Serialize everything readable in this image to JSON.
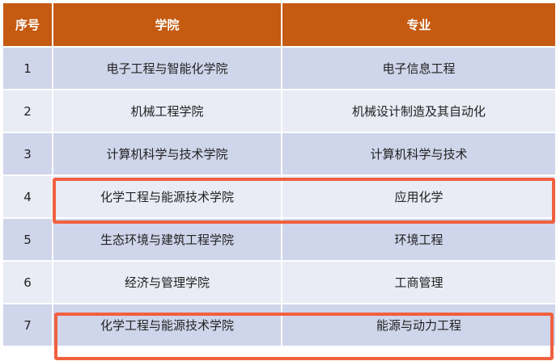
{
  "headers": {
    "index": "序号",
    "college": "学院",
    "major": "专业"
  },
  "rows": [
    {
      "index": "1",
      "college": "电子工程与智能化学院",
      "major": "电子信息工程",
      "highlighted": false
    },
    {
      "index": "2",
      "college": "机械工程学院",
      "major": "机械设计制造及其自动化",
      "highlighted": false
    },
    {
      "index": "3",
      "college": "计算机科学与技术学院",
      "major": "计算机科学与技术",
      "highlighted": false
    },
    {
      "index": "4",
      "college": "化学工程与能源技术学院",
      "major": "应用化学",
      "highlighted": true
    },
    {
      "index": "5",
      "college": "生态环境与建筑工程学院",
      "major": "环境工程",
      "highlighted": false
    },
    {
      "index": "6",
      "college": "经济与管理学院",
      "major": "工商管理",
      "highlighted": false
    },
    {
      "index": "7",
      "college": "化学工程与能源技术学院",
      "major": "能源与动力工程",
      "highlighted": true
    }
  ],
  "colors": {
    "header": "#c55a11",
    "row_dark": "#cfd5ea",
    "row_light": "#e9ebf5",
    "highlight": "#f0603f"
  }
}
